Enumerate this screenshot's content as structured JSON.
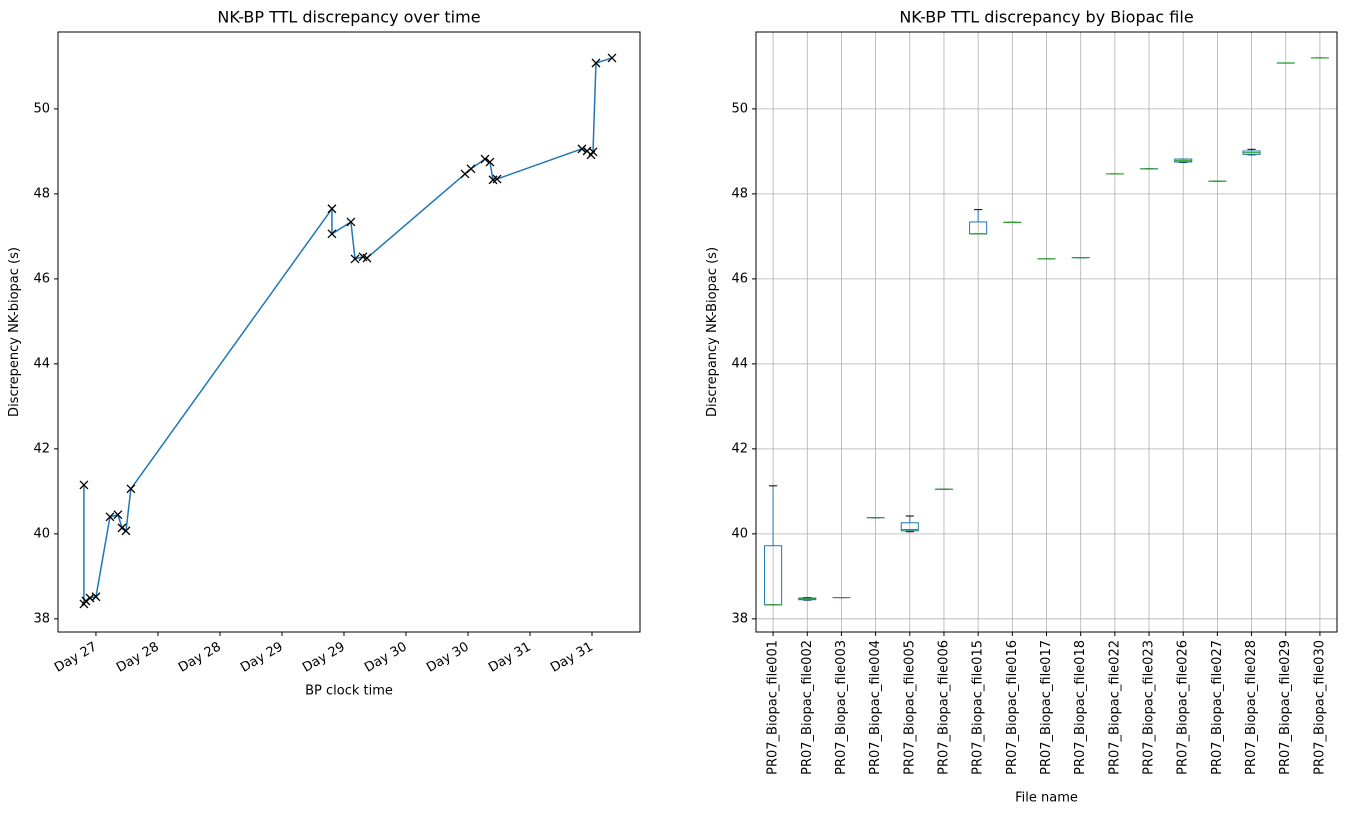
{
  "chart_data": [
    {
      "type": "line",
      "title": "NK-BP TTL discrepancy over time",
      "xlabel": "BP clock time",
      "ylabel": "Discrepency NK-biopac (s)",
      "x": [
        27.403,
        27.403,
        27.419,
        27.452,
        27.5,
        27.613,
        27.677,
        27.71,
        27.742,
        27.782,
        29.403,
        29.403,
        29.556,
        29.589,
        29.653,
        29.685,
        30.476,
        30.524,
        30.637,
        30.677,
        30.702,
        30.734,
        31.419,
        31.46,
        31.492,
        31.508,
        31.532,
        31.661
      ],
      "series": [
        {
          "color": "#1f77b4",
          "marker_color": "#000000",
          "values": [
            41.15,
            38.35,
            38.42,
            38.49,
            38.52,
            40.4,
            40.45,
            40.14,
            40.07,
            41.06,
            47.65,
            47.06,
            47.34,
            46.47,
            46.52,
            46.49,
            48.47,
            48.59,
            48.82,
            48.75,
            48.33,
            48.35,
            49.06,
            49.01,
            48.92,
            48.99,
            51.08,
            51.2
          ]
        }
      ],
      "xlim": [
        27.194,
        31.887
      ],
      "ylim": [
        37.69,
        51.81
      ],
      "xticks": [
        {
          "value": 27.5,
          "label": "Day 27"
        },
        {
          "value": 28,
          "label": "Day 28"
        },
        {
          "value": 28.5,
          "label": "Day 28"
        },
        {
          "value": 29,
          "label": "Day 29"
        },
        {
          "value": 29.5,
          "label": "Day 29"
        },
        {
          "value": 30,
          "label": "Day 30"
        },
        {
          "value": 30.5,
          "label": "Day 30"
        },
        {
          "value": 31,
          "label": "Day 31"
        },
        {
          "value": 31.5,
          "label": "Day 31"
        }
      ],
      "yticks": [
        38,
        40,
        42,
        44,
        46,
        48,
        50
      ],
      "grid": false
    },
    {
      "type": "box",
      "title": "NK-BP TTL discrepancy by Biopac file",
      "xlabel": "File name",
      "ylabel": "Discrepancy NK-Biopac (s)",
      "categories": [
        "PR07_Biopac_file001",
        "PR07_Biopac_file002",
        "PR07_Biopac_file003",
        "PR07_Biopac_file004",
        "PR07_Biopac_file005",
        "PR07_Biopac_file006",
        "PR07_Biopac_file015",
        "PR07_Biopac_file016",
        "PR07_Biopac_file017",
        "PR07_Biopac_file018",
        "PR07_Biopac_file022",
        "PR07_Biopac_file023",
        "PR07_Biopac_file026",
        "PR07_Biopac_file027",
        "PR07_Biopac_file028",
        "PR07_Biopac_file029",
        "PR07_Biopac_file030"
      ],
      "boxes": [
        {
          "low": 38.33,
          "q1": 38.33,
          "median": 38.33,
          "q3": 39.72,
          "high": 41.13
        },
        {
          "low": 38.44,
          "q1": 38.45,
          "median": 38.47,
          "q3": 38.49,
          "high": 38.5
        },
        {
          "low": 38.5,
          "q1": 38.5,
          "median": 38.5,
          "q3": 38.5,
          "high": 38.5
        },
        {
          "low": 40.38,
          "q1": 40.38,
          "median": 40.38,
          "q3": 40.38,
          "high": 40.38
        },
        {
          "low": 40.05,
          "q1": 40.07,
          "median": 40.1,
          "q3": 40.26,
          "high": 40.42
        },
        {
          "low": 41.05,
          "q1": 41.05,
          "median": 41.05,
          "q3": 41.05,
          "high": 41.05
        },
        {
          "low": 47.06,
          "q1": 47.06,
          "median": 47.06,
          "q3": 47.34,
          "high": 47.63
        },
        {
          "low": 47.33,
          "q1": 47.33,
          "median": 47.33,
          "q3": 47.33,
          "high": 47.33
        },
        {
          "low": 46.47,
          "q1": 46.47,
          "median": 46.47,
          "q3": 46.47,
          "high": 46.47
        },
        {
          "low": 46.5,
          "q1": 46.5,
          "median": 46.5,
          "q3": 46.5,
          "high": 46.5
        },
        {
          "low": 48.47,
          "q1": 48.47,
          "median": 48.47,
          "q3": 48.47,
          "high": 48.47
        },
        {
          "low": 48.59,
          "q1": 48.59,
          "median": 48.59,
          "q3": 48.59,
          "high": 48.59
        },
        {
          "low": 48.74,
          "q1": 48.75,
          "median": 48.78,
          "q3": 48.82,
          "high": 48.82
        },
        {
          "low": 48.3,
          "q1": 48.3,
          "median": 48.3,
          "q3": 48.3,
          "high": 48.3
        },
        {
          "low": 48.92,
          "q1": 48.93,
          "median": 48.97,
          "q3": 49.01,
          "high": 49.05
        },
        {
          "low": 51.08,
          "q1": 51.08,
          "median": 51.08,
          "q3": 51.08,
          "high": 51.08
        },
        {
          "low": 51.2,
          "q1": 51.2,
          "median": 51.2,
          "q3": 51.2,
          "high": 51.2
        }
      ],
      "box_color": "#1f77b4",
      "median_color": "#2ca02c",
      "whisker_color": "#000000",
      "ylim": [
        37.69,
        51.81
      ],
      "yticks": [
        38,
        40,
        42,
        44,
        46,
        48,
        50
      ],
      "grid": true
    }
  ]
}
